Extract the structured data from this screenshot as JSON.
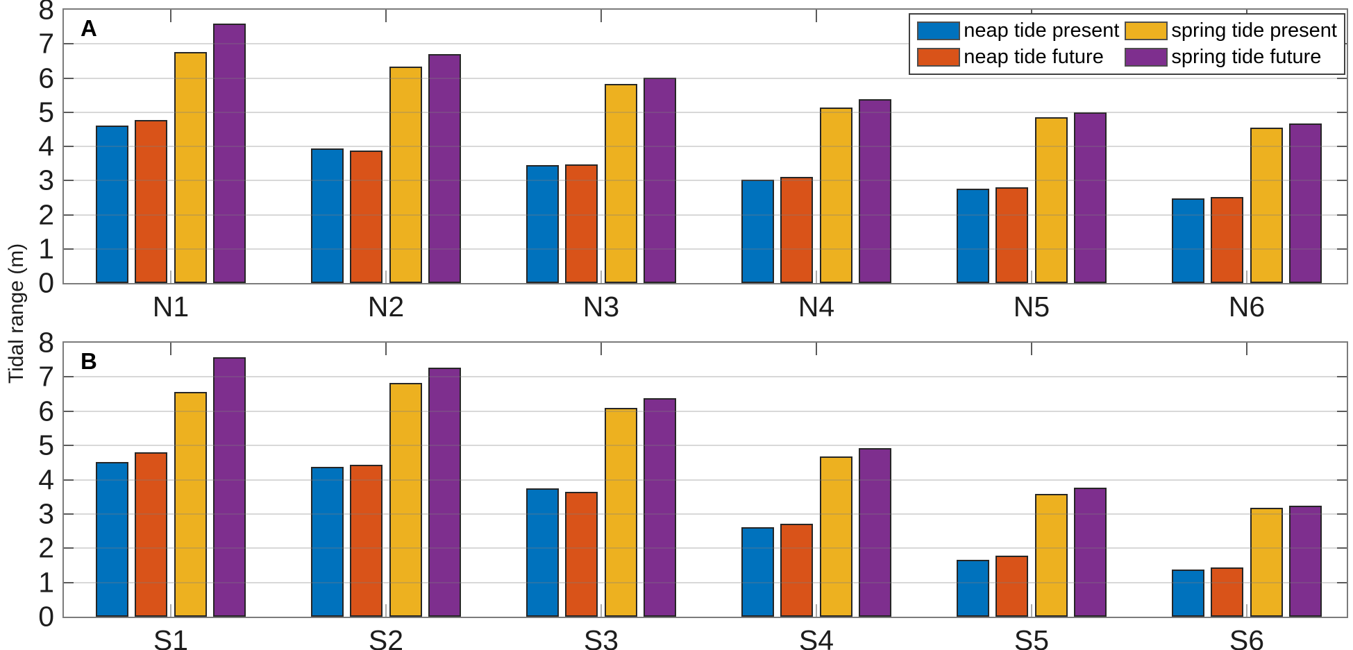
{
  "chart_data": [
    {
      "type": "bar",
      "panel": "A",
      "ylabel": "Tidal range (m)",
      "ylim": [
        0,
        8
      ],
      "yticks": [
        0,
        1,
        2,
        3,
        4,
        5,
        6,
        7,
        8
      ],
      "grid": true,
      "grid_layer": "top",
      "legend_position": "top-right-inside",
      "categories": [
        "N1",
        "N2",
        "N3",
        "N4",
        "N5",
        "N6"
      ],
      "series": [
        {
          "name": "neap tide present",
          "color": "#0072BD",
          "values": [
            4.6,
            3.93,
            3.45,
            3.03,
            2.77,
            2.47
          ]
        },
        {
          "name": "neap tide future",
          "color": "#D95319",
          "values": [
            4.77,
            3.88,
            3.47,
            3.1,
            2.81,
            2.52
          ]
        },
        {
          "name": "spring tide present",
          "color": "#EDB120",
          "values": [
            6.77,
            6.33,
            5.82,
            5.14,
            4.86,
            4.54
          ]
        },
        {
          "name": "spring tide future",
          "color": "#7E2F8E",
          "values": [
            7.6,
            6.71,
            6.0,
            5.39,
            5.0,
            4.68
          ]
        }
      ]
    },
    {
      "type": "bar",
      "panel": "B",
      "ylabel": "Tidal range (m)",
      "ylim": [
        0,
        8
      ],
      "yticks": [
        0,
        1,
        2,
        3,
        4,
        5,
        6,
        7,
        8
      ],
      "grid": true,
      "grid_layer": "top",
      "categories": [
        "S1",
        "S2",
        "S3",
        "S4",
        "S5",
        "S6"
      ],
      "series": [
        {
          "name": "neap tide present",
          "color": "#0072BD",
          "values": [
            4.51,
            4.37,
            3.74,
            2.62,
            1.67,
            1.38
          ]
        },
        {
          "name": "neap tide future",
          "color": "#D95319",
          "values": [
            4.79,
            4.43,
            3.65,
            2.71,
            1.79,
            1.43
          ]
        },
        {
          "name": "spring tide present",
          "color": "#EDB120",
          "values": [
            6.56,
            6.82,
            6.09,
            4.67,
            3.58,
            3.17
          ]
        },
        {
          "name": "spring tide future",
          "color": "#7E2F8E",
          "values": [
            7.58,
            7.28,
            6.37,
            4.93,
            3.77,
            3.25
          ]
        }
      ]
    }
  ]
}
